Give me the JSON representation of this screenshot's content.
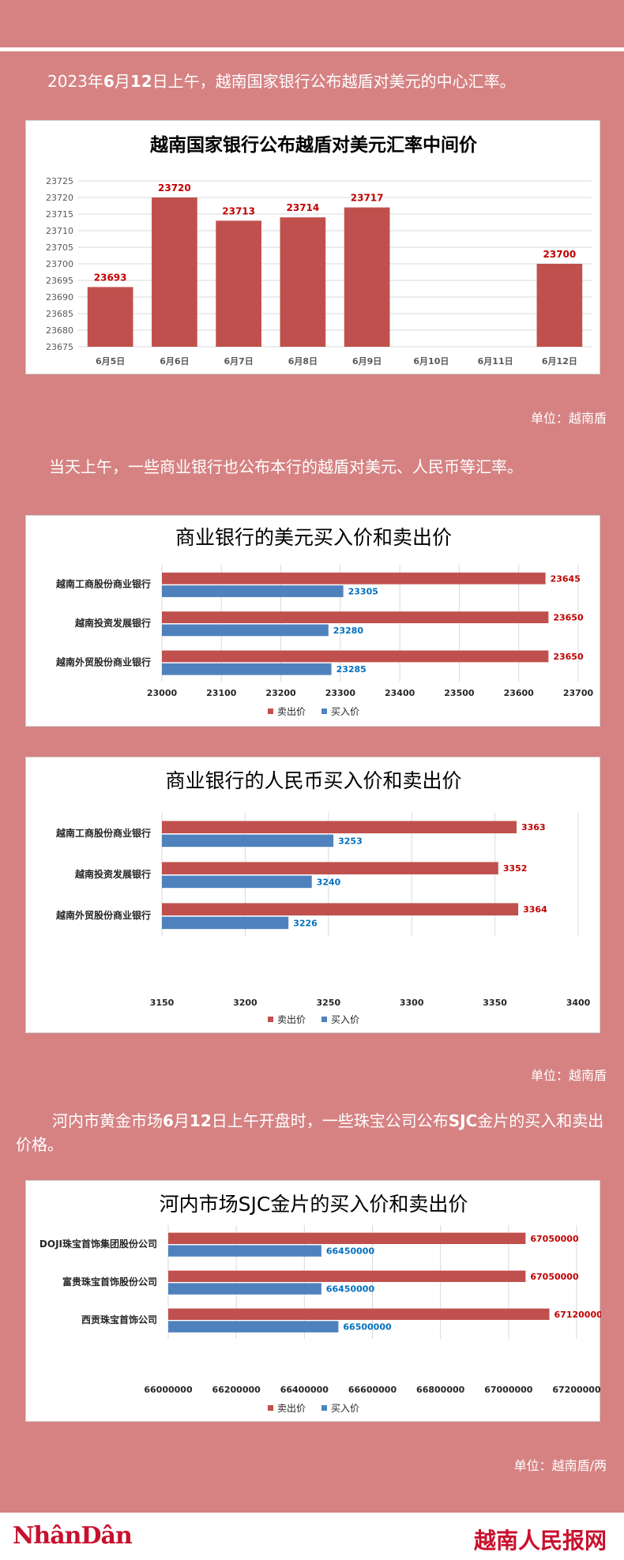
{
  "colors": {
    "background": "#d68283",
    "sell": "#c0504d",
    "buy": "#4f81bd",
    "sell_label": "#c00000",
    "buy_label": "#0070c0"
  },
  "intro_parts": [
    "2023年",
    "6",
    "月",
    "12",
    "日上午，越南国家银行公布越盾对美元的中心汇率。"
  ],
  "unit_1": "单位：越南盾",
  "para_2": "当天上午，一些商业银行也公布本行的越盾对美元、人民币等汇率。",
  "unit_2": "单位：越南盾",
  "para_3_parts": [
    "河内市黄金市场",
    "6",
    "月",
    "12",
    "日上午开盘时，一些珠宝公司公布",
    "SJC",
    "金片的买入和卖出价格。"
  ],
  "unit_3": "单位：越南盾/两",
  "footer": {
    "logo_left": "NhânDân",
    "logo_right": "越南人民报网"
  },
  "chart_data": [
    {
      "type": "bar",
      "title": "越南国家银行公布越盾对美元汇率中间价",
      "categories": [
        "6月5日",
        "6月6日",
        "6月7日",
        "6月8日",
        "6月9日",
        "6月10日",
        "6月11日",
        "6月12日"
      ],
      "values": [
        23693,
        23720,
        23713,
        23714,
        23717,
        null,
        null,
        23700
      ],
      "data_labels": [
        "23693",
        "23720",
        "23713",
        "23714",
        "23717",
        "",
        "",
        "23700"
      ],
      "ylim": [
        23675,
        23725
      ],
      "yticks": [
        "23675",
        "23680",
        "23685",
        "23690",
        "23695",
        "23700",
        "23705",
        "23710",
        "23715",
        "23720",
        "23725"
      ],
      "grid": true
    },
    {
      "type": "bar",
      "orientation": "horizontal",
      "title": "商业银行的美元买入价和卖出价",
      "categories": [
        "越南工商股份商业银行",
        "越南投资发展银行",
        "越南外贸股份商业银行"
      ],
      "series": [
        {
          "name": "卖出价",
          "values": [
            23645,
            23650,
            23650
          ],
          "labels": [
            "23645",
            "23650",
            "23650"
          ]
        },
        {
          "name": "买入价",
          "values": [
            23305,
            23280,
            23285
          ],
          "labels": [
            "23305",
            "23280",
            "23285"
          ]
        }
      ],
      "xlim": [
        23000,
        23700
      ],
      "xticks": [
        "23000",
        "23100",
        "23200",
        "23300",
        "23400",
        "23500",
        "23600",
        "23700"
      ],
      "legend": "bottom"
    },
    {
      "type": "bar",
      "orientation": "horizontal",
      "title": "商业银行的人民币买入价和卖出价",
      "categories": [
        "越南工商股份商业银行",
        "越南投资发展银行",
        "越南外贸股份商业银行"
      ],
      "series": [
        {
          "name": "卖出价",
          "values": [
            3363,
            3352,
            3364
          ],
          "labels": [
            "3363",
            "3352",
            "3364"
          ]
        },
        {
          "name": "买入价",
          "values": [
            3253,
            3240,
            3226
          ],
          "labels": [
            "3253",
            "3240",
            "3226"
          ]
        }
      ],
      "xlim": [
        3150,
        3400
      ],
      "xticks": [
        "3150",
        "3200",
        "3250",
        "3300",
        "3350",
        "3400"
      ],
      "legend": "bottom"
    },
    {
      "type": "bar",
      "orientation": "horizontal",
      "title": "河内市场SJC金片的买入价和卖出价",
      "categories": [
        "DOJI珠宝首饰集团股份公司",
        "富贵珠宝首饰股份公司",
        "西贡珠宝首饰公司"
      ],
      "series": [
        {
          "name": "卖出价",
          "values": [
            67050000,
            67050000,
            67120000
          ],
          "labels": [
            "67050000",
            "67050000",
            "67120000"
          ]
        },
        {
          "name": "买入价",
          "values": [
            66450000,
            66450000,
            66500000
          ],
          "labels": [
            "66450000",
            "66450000",
            "66500000"
          ]
        }
      ],
      "xlim": [
        66000000,
        67200000
      ],
      "xticks": [
        "66000000",
        "66200000",
        "66400000",
        "66600000",
        "66800000",
        "67000000",
        "67200000"
      ],
      "legend": "bottom"
    }
  ]
}
